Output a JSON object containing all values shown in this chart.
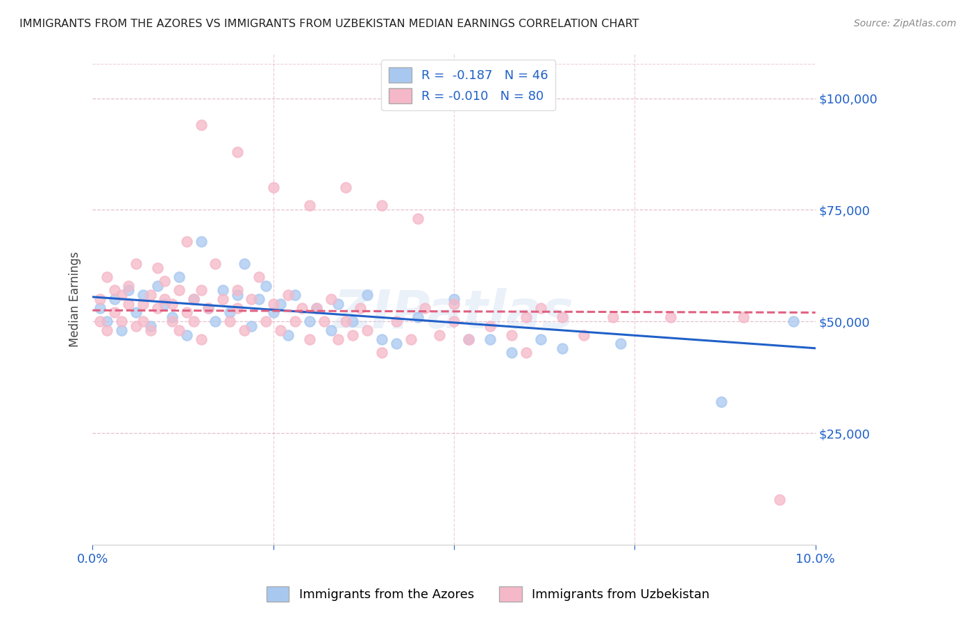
{
  "title": "IMMIGRANTS FROM THE AZORES VS IMMIGRANTS FROM UZBEKISTAN MEDIAN EARNINGS CORRELATION CHART",
  "source": "Source: ZipAtlas.com",
  "ylabel": "Median Earnings",
  "x_min": 0.0,
  "x_max": 0.1,
  "y_min": 0,
  "y_max": 110000,
  "y_ticks": [
    25000,
    50000,
    75000,
    100000
  ],
  "x_ticks": [
    0.0,
    0.025,
    0.05,
    0.075,
    0.1
  ],
  "azores_color": "#a8c8f0",
  "uzbekistan_color": "#f5b8c8",
  "azores_line_color": "#2060c8",
  "uzbekistan_line_color": "#e06080",
  "background_color": "#ffffff",
  "grid_color": "#e0b0c0",
  "watermark": "ZIPatlas",
  "legend_azores_R": "-0.187",
  "legend_azores_N": "46",
  "legend_uzbekistan_R": "-0.010",
  "legend_uzbekistan_N": "80",
  "azores_x": [
    0.001,
    0.002,
    0.003,
    0.004,
    0.005,
    0.006,
    0.007,
    0.008,
    0.009,
    0.01,
    0.011,
    0.012,
    0.013,
    0.014,
    0.015,
    0.016,
    0.017,
    0.018,
    0.019,
    0.02,
    0.021,
    0.022,
    0.023,
    0.024,
    0.025,
    0.026,
    0.027,
    0.028,
    0.03,
    0.031,
    0.033,
    0.034,
    0.036,
    0.038,
    0.04,
    0.042,
    0.045,
    0.05,
    0.052,
    0.055,
    0.058,
    0.062,
    0.065,
    0.073,
    0.087,
    0.097
  ],
  "azores_y": [
    53000,
    50000,
    55000,
    48000,
    57000,
    52000,
    56000,
    49000,
    58000,
    54000,
    51000,
    60000,
    47000,
    55000,
    68000,
    53000,
    50000,
    57000,
    52000,
    56000,
    63000,
    49000,
    55000,
    58000,
    52000,
    54000,
    47000,
    56000,
    50000,
    53000,
    48000,
    54000,
    50000,
    56000,
    46000,
    45000,
    51000,
    55000,
    46000,
    46000,
    43000,
    46000,
    44000,
    45000,
    32000,
    50000
  ],
  "uzbekistan_x": [
    0.001,
    0.001,
    0.002,
    0.002,
    0.003,
    0.003,
    0.004,
    0.004,
    0.005,
    0.005,
    0.006,
    0.006,
    0.007,
    0.007,
    0.008,
    0.008,
    0.009,
    0.009,
    0.01,
    0.01,
    0.011,
    0.011,
    0.012,
    0.012,
    0.013,
    0.013,
    0.014,
    0.014,
    0.015,
    0.015,
    0.016,
    0.017,
    0.018,
    0.019,
    0.02,
    0.02,
    0.021,
    0.022,
    0.023,
    0.024,
    0.025,
    0.026,
    0.027,
    0.028,
    0.029,
    0.03,
    0.031,
    0.032,
    0.033,
    0.034,
    0.035,
    0.036,
    0.037,
    0.038,
    0.04,
    0.042,
    0.044,
    0.046,
    0.048,
    0.05,
    0.052,
    0.055,
    0.058,
    0.06,
    0.062,
    0.065,
    0.068,
    0.015,
    0.02,
    0.025,
    0.03,
    0.035,
    0.04,
    0.045,
    0.05,
    0.06,
    0.072,
    0.08,
    0.09,
    0.095
  ],
  "uzbekistan_y": [
    55000,
    50000,
    60000,
    48000,
    57000,
    52000,
    56000,
    50000,
    54000,
    58000,
    49000,
    63000,
    54000,
    50000,
    56000,
    48000,
    62000,
    53000,
    55000,
    59000,
    50000,
    54000,
    48000,
    57000,
    52000,
    68000,
    55000,
    50000,
    57000,
    46000,
    53000,
    63000,
    55000,
    50000,
    57000,
    53000,
    48000,
    55000,
    60000,
    50000,
    54000,
    48000,
    56000,
    50000,
    53000,
    46000,
    53000,
    50000,
    55000,
    46000,
    50000,
    47000,
    53000,
    48000,
    43000,
    50000,
    46000,
    53000,
    47000,
    50000,
    46000,
    49000,
    47000,
    43000,
    53000,
    51000,
    47000,
    94000,
    88000,
    80000,
    76000,
    80000,
    76000,
    73000,
    54000,
    51000,
    51000,
    51000,
    51000,
    10000
  ],
  "az_line_x": [
    0.0,
    0.1
  ],
  "az_line_y": [
    55500,
    44000
  ],
  "uz_line_x": [
    0.0,
    0.1
  ],
  "uz_line_y": [
    52500,
    52000
  ]
}
